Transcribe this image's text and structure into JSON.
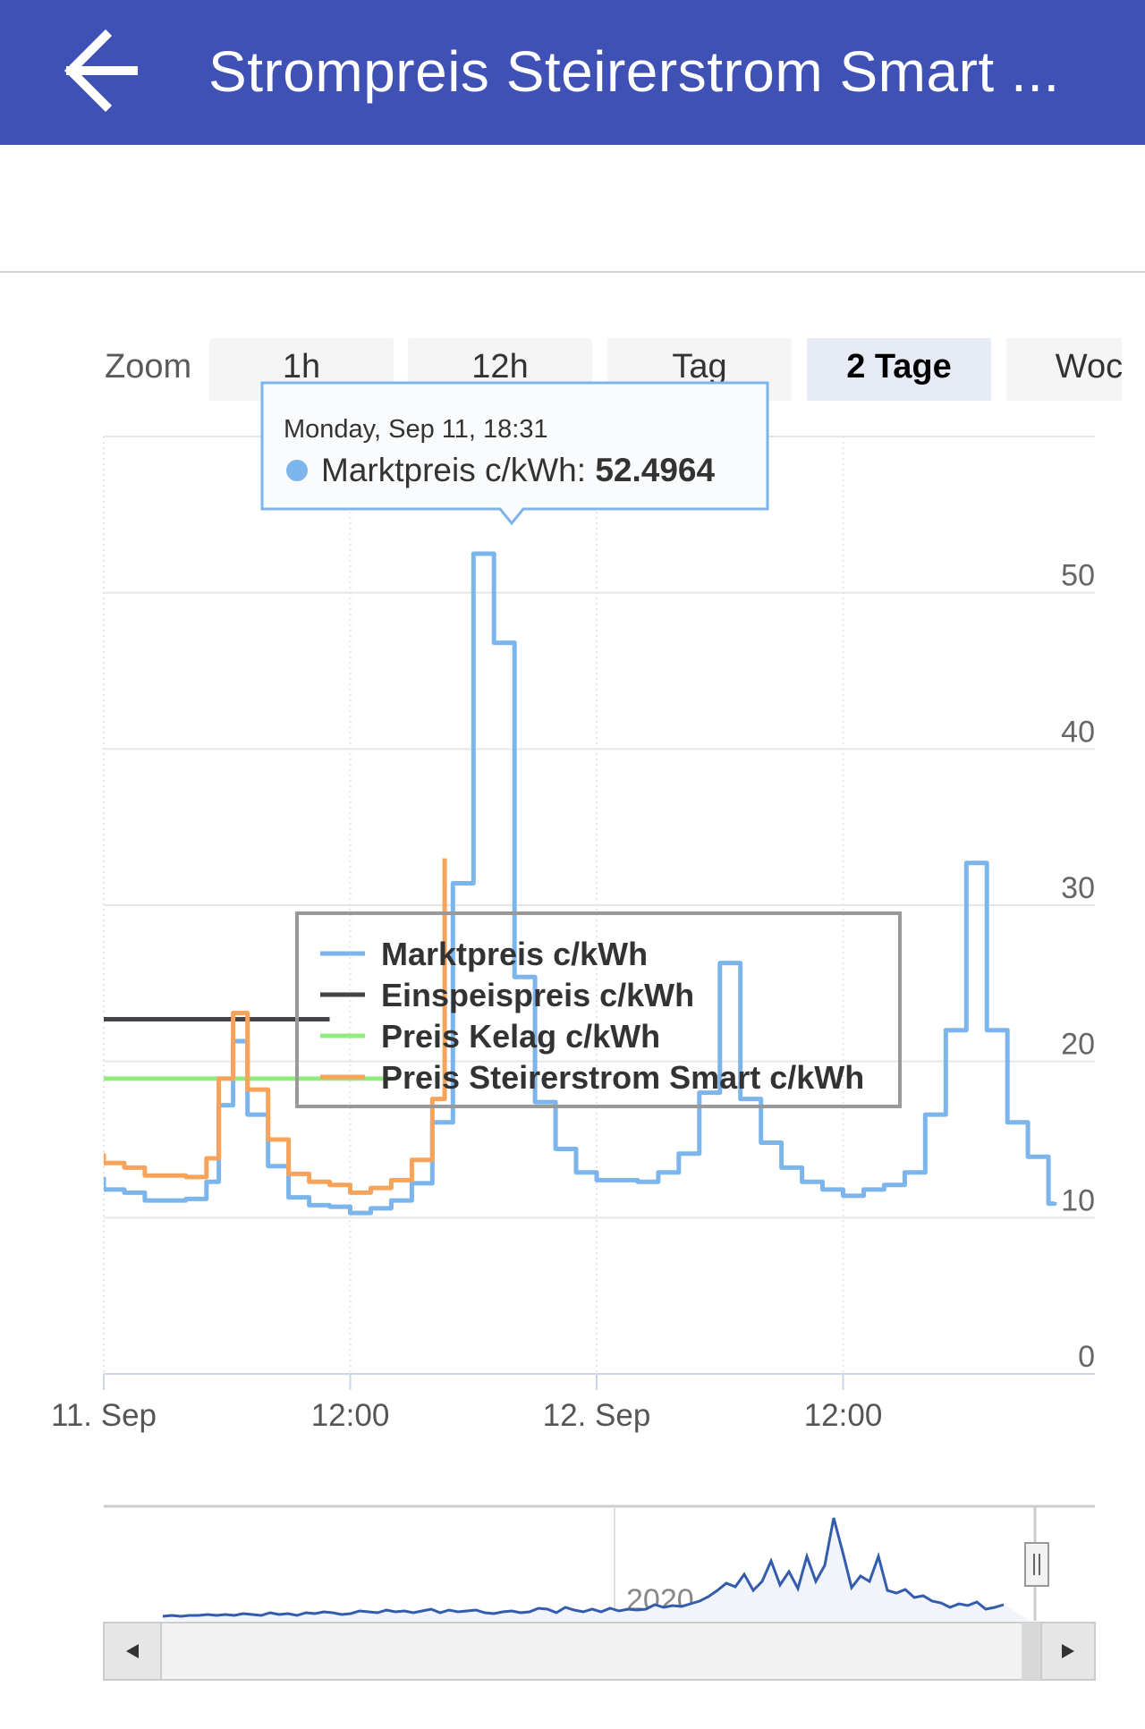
{
  "appbar": {
    "title": "Strompreis Steirerstrom Smart ...",
    "back_icon": "arrow-left-icon",
    "color": "#3f51b5"
  },
  "zoom": {
    "label": "Zoom",
    "buttons": [
      "1h",
      "12h",
      "Tag",
      "2 Tage",
      "Woch"
    ],
    "selected": "2 Tage"
  },
  "tooltip": {
    "date": "Monday, Sep 11, 18:31",
    "series": "Marktpreis c/kWh",
    "value": "52.4964"
  },
  "navigator": {
    "year_label": "2020",
    "left_arrow_icon": "arrow-left-small-icon",
    "right_arrow_icon": "arrow-right-small-icon",
    "handle_icon": "grip-handle-icon"
  },
  "chart_data": {
    "type": "line",
    "line_shape": "step",
    "x_range": [
      0,
      48
    ],
    "x_unit": "hours since 11. Sep 00:00",
    "x_ticks": [
      {
        "x": 0,
        "label": "11. Sep"
      },
      {
        "x": 12,
        "label": "12:00"
      },
      {
        "x": 24,
        "label": "12. Sep"
      },
      {
        "x": 36,
        "label": "12:00"
      }
    ],
    "y_range": [
      0,
      60
    ],
    "y_ticks": [
      0,
      10,
      20,
      30,
      40,
      50
    ],
    "grid": true,
    "legend_position": "center-left",
    "series": [
      {
        "name": "Marktpreis c/kWh",
        "color": "#7cb5ec",
        "points": [
          [
            -1,
            12.5
          ],
          [
            -0.5,
            12.5
          ],
          [
            0,
            11.8
          ],
          [
            1,
            11.6
          ],
          [
            2,
            11.1
          ],
          [
            3,
            11.1
          ],
          [
            4,
            11.2
          ],
          [
            5,
            12.3
          ],
          [
            5.6,
            17.2
          ],
          [
            6.3,
            21.3
          ],
          [
            7,
            16.6
          ],
          [
            8,
            13.3
          ],
          [
            9,
            11.3
          ],
          [
            10,
            10.8
          ],
          [
            11,
            10.7
          ],
          [
            12,
            10.3
          ],
          [
            13,
            10.6
          ],
          [
            14,
            11.1
          ],
          [
            15,
            12.2
          ],
          [
            16,
            16.1
          ],
          [
            17,
            31.4
          ],
          [
            18,
            52.5
          ],
          [
            19,
            46.8
          ],
          [
            20,
            25.4
          ],
          [
            21,
            17.4
          ],
          [
            22,
            14.4
          ],
          [
            23,
            12.9
          ],
          [
            24,
            12.4
          ],
          [
            25,
            12.4
          ],
          [
            26,
            12.3
          ],
          [
            27,
            12.9
          ],
          [
            28,
            14.1
          ],
          [
            29,
            18.0
          ],
          [
            30,
            26.3
          ],
          [
            31,
            17.6
          ],
          [
            32,
            14.8
          ],
          [
            33,
            13.2
          ],
          [
            34,
            12.3
          ],
          [
            35,
            11.8
          ],
          [
            36,
            11.4
          ],
          [
            37,
            11.8
          ],
          [
            38,
            12.1
          ],
          [
            39,
            12.9
          ],
          [
            40,
            16.6
          ],
          [
            41,
            22.0
          ],
          [
            42,
            32.7
          ],
          [
            43,
            22.0
          ],
          [
            44,
            16.1
          ],
          [
            45,
            13.9
          ],
          [
            46,
            10.9
          ],
          [
            46.3,
            11.0
          ]
        ]
      },
      {
        "name": "Einspeispreis c/kWh",
        "color": "#434348",
        "points": [
          [
            -1,
            22.7
          ],
          [
            11,
            22.7
          ]
        ]
      },
      {
        "name": "Preis Kelag c/kWh",
        "color": "#90ed7d",
        "points": [
          [
            -1,
            18.9
          ],
          [
            14,
            18.9
          ]
        ]
      },
      {
        "name": "Preis Steirerstrom Smart c/kWh",
        "color": "#f7a35c",
        "points": [
          [
            -1,
            14.0
          ],
          [
            0,
            13.5
          ],
          [
            1,
            13.2
          ],
          [
            2,
            12.7
          ],
          [
            3,
            12.7
          ],
          [
            4,
            12.6
          ],
          [
            5,
            13.8
          ],
          [
            5.6,
            18.9
          ],
          [
            6.3,
            23.1
          ],
          [
            7,
            18.2
          ],
          [
            8,
            15.0
          ],
          [
            9,
            12.8
          ],
          [
            10,
            12.3
          ],
          [
            11,
            12.1
          ],
          [
            12,
            11.6
          ],
          [
            13,
            11.9
          ],
          [
            14,
            12.4
          ],
          [
            15,
            13.7
          ],
          [
            16,
            17.6
          ],
          [
            16.6,
            33.0
          ]
        ]
      }
    ]
  }
}
